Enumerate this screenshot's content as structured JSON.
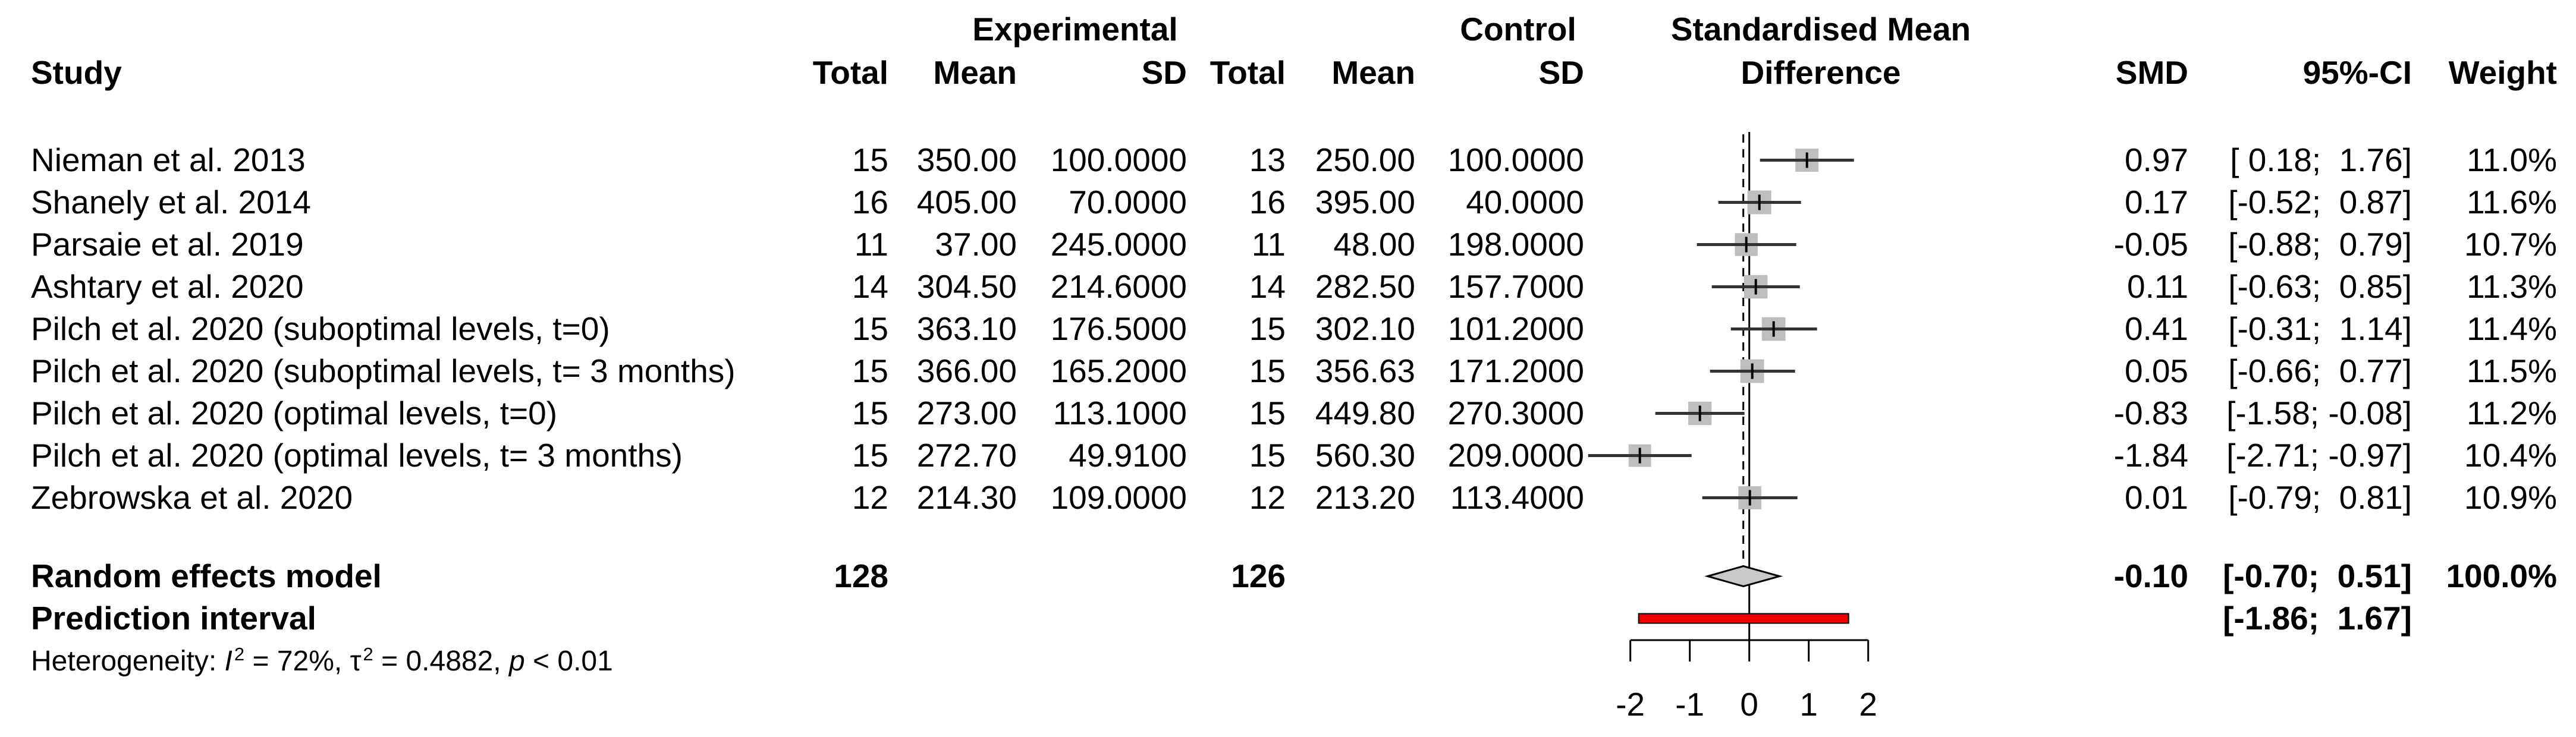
{
  "header": {
    "col_study": "Study",
    "group_experimental": "Experimental",
    "group_control": "Control",
    "plot_title_line1": "Standardised Mean",
    "plot_title_line2": "Difference",
    "col_total": "Total",
    "col_mean": "Mean",
    "col_sd": "SD",
    "col_smd": "SMD",
    "col_ci": "95%-CI",
    "col_weight": "Weight"
  },
  "colors": {
    "background": "#ffffff",
    "text": "#000000",
    "square": "#bebebe",
    "diamond": "#c9c9c9",
    "prediction_bar": "#ee0000",
    "ci_line": "#333333",
    "axis_line": "#000000"
  },
  "chart_data": {
    "type": "forest",
    "effect_measure": "SMD",
    "title": "Standardised Mean Difference",
    "axis_ticks": [
      -2,
      -1,
      0,
      1,
      2
    ],
    "axis_tick_labels": [
      "-2",
      "-1",
      "0",
      "1",
      "2"
    ],
    "zero_line": 0,
    "pooled_dashed_line": -0.1,
    "studies": [
      {
        "name": "Nieman et al. 2013",
        "n_exp": "15",
        "mean_exp": "350.00",
        "sd_exp": "100.0000",
        "n_ctrl": "13",
        "mean_ctrl": "250.00",
        "sd_ctrl": "100.0000",
        "smd": 0.97,
        "ci_low": 0.18,
        "ci_high": 1.76,
        "smd_text": "0.97",
        "ci_text": "[ 0.18;  1.76]",
        "weight": 11.0,
        "weight_text": "11.0%"
      },
      {
        "name": "Shanely et al. 2014",
        "n_exp": "16",
        "mean_exp": "405.00",
        "sd_exp": "70.0000",
        "n_ctrl": "16",
        "mean_ctrl": "395.00",
        "sd_ctrl": "40.0000",
        "smd": 0.17,
        "ci_low": -0.52,
        "ci_high": 0.87,
        "smd_text": "0.17",
        "ci_text": "[-0.52;  0.87]",
        "weight": 11.6,
        "weight_text": "11.6%"
      },
      {
        "name": "Parsaie et al. 2019",
        "n_exp": "11",
        "mean_exp": "37.00",
        "sd_exp": "245.0000",
        "n_ctrl": "11",
        "mean_ctrl": "48.00",
        "sd_ctrl": "198.0000",
        "smd": -0.05,
        "ci_low": -0.88,
        "ci_high": 0.79,
        "smd_text": "-0.05",
        "ci_text": "[-0.88;  0.79]",
        "weight": 10.7,
        "weight_text": "10.7%"
      },
      {
        "name": "Ashtary et al. 2020",
        "n_exp": "14",
        "mean_exp": "304.50",
        "sd_exp": "214.6000",
        "n_ctrl": "14",
        "mean_ctrl": "282.50",
        "sd_ctrl": "157.7000",
        "smd": 0.11,
        "ci_low": -0.63,
        "ci_high": 0.85,
        "smd_text": "0.11",
        "ci_text": "[-0.63;  0.85]",
        "weight": 11.3,
        "weight_text": "11.3%"
      },
      {
        "name": "Pilch et al. 2020 (suboptimal levels, t=0)",
        "n_exp": "15",
        "mean_exp": "363.10",
        "sd_exp": "176.5000",
        "n_ctrl": "15",
        "mean_ctrl": "302.10",
        "sd_ctrl": "101.2000",
        "smd": 0.41,
        "ci_low": -0.31,
        "ci_high": 1.14,
        "smd_text": "0.41",
        "ci_text": "[-0.31;  1.14]",
        "weight": 11.4,
        "weight_text": "11.4%"
      },
      {
        "name": "Pilch et al. 2020 (suboptimal levels, t= 3 months)",
        "n_exp": "15",
        "mean_exp": "366.00",
        "sd_exp": "165.2000",
        "n_ctrl": "15",
        "mean_ctrl": "356.63",
        "sd_ctrl": "171.2000",
        "smd": 0.05,
        "ci_low": -0.66,
        "ci_high": 0.77,
        "smd_text": "0.05",
        "ci_text": "[-0.66;  0.77]",
        "weight": 11.5,
        "weight_text": "11.5%"
      },
      {
        "name": "Pilch et al. 2020 (optimal levels, t=0)",
        "n_exp": "15",
        "mean_exp": "273.00",
        "sd_exp": "113.1000",
        "n_ctrl": "15",
        "mean_ctrl": "449.80",
        "sd_ctrl": "270.3000",
        "smd": -0.83,
        "ci_low": -1.58,
        "ci_high": -0.08,
        "smd_text": "-0.83",
        "ci_text": "[-1.58; -0.08]",
        "weight": 11.2,
        "weight_text": "11.2%"
      },
      {
        "name": "Pilch et al. 2020 (optimal levels, t= 3 months)",
        "n_exp": "15",
        "mean_exp": "272.70",
        "sd_exp": "49.9100",
        "n_ctrl": "15",
        "mean_ctrl": "560.30",
        "sd_ctrl": "209.0000",
        "smd": -1.84,
        "ci_low": -2.71,
        "ci_high": -0.97,
        "smd_text": "-1.84",
        "ci_text": "[-2.71; -0.97]",
        "weight": 10.4,
        "weight_text": "10.4%"
      },
      {
        "name": "Zebrowska et al. 2020",
        "n_exp": "12",
        "mean_exp": "214.30",
        "sd_exp": "109.0000",
        "n_ctrl": "12",
        "mean_ctrl": "213.20",
        "sd_ctrl": "113.4000",
        "smd": 0.01,
        "ci_low": -0.79,
        "ci_high": 0.81,
        "smd_text": "0.01",
        "ci_text": "[-0.79;  0.81]",
        "weight": 10.9,
        "weight_text": "10.9%"
      }
    ],
    "summary": {
      "label": "Random effects model",
      "n_exp": 128,
      "n_ctrl": 126,
      "n_exp_text": "128",
      "n_ctrl_text": "126",
      "smd": -0.1,
      "ci_low": -0.7,
      "ci_high": 0.51,
      "smd_text": "-0.10",
      "ci_text": "[-0.70;  0.51]",
      "weight_text": "100.0%"
    },
    "prediction_interval": {
      "label": "Prediction interval",
      "low": -1.86,
      "high": 1.67,
      "ci_text": "[-1.86;  1.67]"
    },
    "heterogeneity": {
      "full_text": "Heterogeneity: I² = 72%, τ² = 0.4882, p < 0.01",
      "prefix": "Heterogeneity: ",
      "i_label": "I",
      "i_sup": "2",
      "mid1": " = 72%, τ",
      "tau_sup": "2",
      "mid2": " = 0.4882, ",
      "p_label": "p",
      "tail": " < 0.01"
    }
  }
}
